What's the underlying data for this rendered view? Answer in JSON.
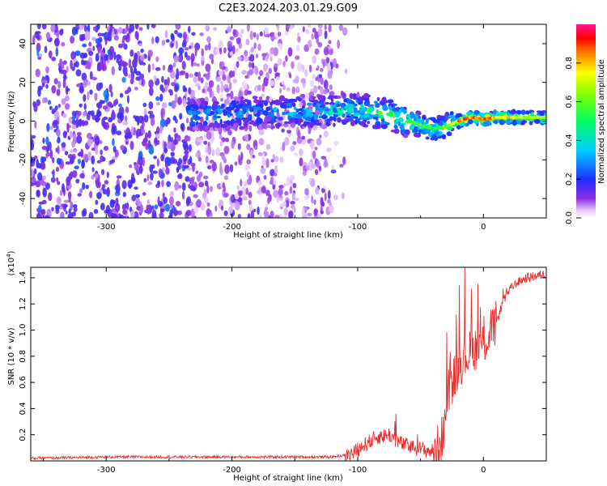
{
  "title": "C2E3.2024.203.01.29.G09",
  "chart_data": [
    {
      "type": "heatmap",
      "xlabel": "Height of straight line (km)",
      "ylabel": "Frequency (Hz)",
      "xlim": [
        -360,
        50
      ],
      "ylim": [
        -50,
        50
      ],
      "x_ticks": [
        -300,
        -200,
        -100,
        0
      ],
      "x_tick_labels": [
        "-300",
        "-200",
        "-100",
        "0"
      ],
      "y_ticks": [
        -40,
        -20,
        0,
        20,
        40
      ],
      "y_tick_labels": [
        "-40",
        "-20",
        "0",
        "20",
        "40"
      ],
      "colorbar": {
        "label": "Normalized spectral amplitude",
        "range": [
          0,
          1
        ],
        "ticks": [
          0.0,
          0.2,
          0.4,
          0.6,
          0.8
        ],
        "tick_labels": [
          "0.0",
          "0.2",
          "0.4",
          "0.6",
          "0.8"
        ],
        "colormap": "rainbow (white-purple-blue-cyan-green-yellow-red-magenta)"
      },
      "ridge": {
        "description": "dominant frequency ridge vs height",
        "x": [
          -230,
          -200,
          -150,
          -120,
          -100,
          -80,
          -60,
          -50,
          -40,
          -30,
          -20,
          -10,
          0,
          10,
          20,
          50
        ],
        "y": [
          3,
          4,
          5,
          5,
          6,
          4,
          0,
          -2,
          -4,
          -3,
          0,
          2,
          1,
          2,
          2,
          2
        ],
        "peak_amplitude": [
          0.35,
          0.35,
          0.4,
          0.45,
          0.5,
          0.55,
          0.6,
          0.6,
          0.55,
          0.65,
          0.85,
          0.9,
          0.95,
          0.85,
          0.8,
          0.7
        ]
      },
      "noise_region": {
        "x_from": -360,
        "x_to": -120,
        "amplitude_max": 0.3
      }
    },
    {
      "type": "line",
      "xlabel": "Height of straight line (km)",
      "ylabel": "SNR (10 * v/v)",
      "multiplier_label": "(x10",
      "multiplier_exp": "4",
      "multiplier_close": ")",
      "xlim": [
        -360,
        50
      ],
      "ylim": [
        0,
        1.48
      ],
      "x_ticks": [
        -300,
        -200,
        -100,
        0
      ],
      "x_tick_labels": [
        "-300",
        "-200",
        "-100",
        "0"
      ],
      "y_ticks": [
        0.2,
        0.4,
        0.6,
        0.8,
        1.0,
        1.2,
        1.4
      ],
      "y_tick_labels": [
        "0.2",
        "0.4",
        "0.6",
        "0.8",
        "1.0",
        "1.2",
        "1.4"
      ],
      "color": "#e83030",
      "series": [
        {
          "x": [
            -360,
            -300,
            -250,
            -200,
            -150,
            -120,
            -105,
            -95,
            -85,
            -75,
            -65,
            -55,
            -45,
            -38,
            -32,
            -28,
            -24,
            -20,
            -16,
            -12,
            -8,
            -4,
            0,
            5,
            10,
            15,
            20,
            25,
            30,
            35,
            40,
            45,
            50
          ],
          "y": [
            0.02,
            0.03,
            0.03,
            0.03,
            0.03,
            0.03,
            0.05,
            0.12,
            0.18,
            0.2,
            0.13,
            0.1,
            0.08,
            0.07,
            0.2,
            0.55,
            0.62,
            0.72,
            0.78,
            0.82,
            0.85,
            0.88,
            0.9,
            0.95,
            1.05,
            1.2,
            1.3,
            1.35,
            1.38,
            1.4,
            1.41,
            1.42,
            1.43
          ]
        }
      ]
    }
  ]
}
